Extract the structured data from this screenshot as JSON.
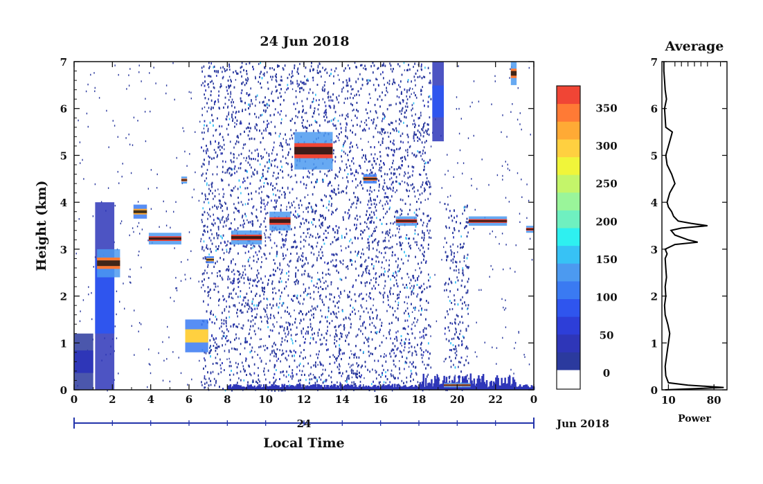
{
  "chart_data": [
    {
      "type": "heatmap",
      "title": "24 Jun 2018",
      "xlabel": "Local Time",
      "ylabel": "Height (km)",
      "xlim": [
        0,
        24
      ],
      "ylim": [
        0,
        7
      ],
      "x_ticks": [
        "0",
        "2",
        "4",
        "6",
        "8",
        "10",
        "12",
        "14",
        "16",
        "18",
        "20",
        "22",
        "0"
      ],
      "y_ticks": [
        "0",
        "1",
        "2",
        "3",
        "4",
        "5",
        "6",
        "7"
      ],
      "date_axis": {
        "day_label": "24",
        "month_label": "Jun 2018"
      },
      "colorbar": {
        "min": 0,
        "max": 375,
        "tick_labels": [
          "0",
          "50",
          "100",
          "150",
          "200",
          "250",
          "300",
          "350"
        ],
        "tick_values": [
          0,
          50,
          100,
          150,
          200,
          250,
          300,
          350
        ],
        "colors": [
          "#2b3a9e",
          "#2e36b8",
          "#2d3ed8",
          "#2f55ee",
          "#3a7af2",
          "#4c9af0",
          "#37c2f5",
          "#2ef0f0",
          "#6ff0c0",
          "#9af59a",
          "#c4f56a",
          "#f0f53a",
          "#ffd040",
          "#ffaa35",
          "#ff7a35",
          "#f04535"
        ]
      },
      "cloud_layers": [
        {
          "x0": 0.0,
          "x1": 1.0,
          "y0": 0.0,
          "y1": 1.2,
          "level": 40
        },
        {
          "x0": 1.1,
          "x1": 2.1,
          "y0": 0.0,
          "y1": 4.0,
          "level": 80
        },
        {
          "x0": 1.2,
          "x1": 2.4,
          "y0": 2.4,
          "y1": 3.0,
          "level": 350
        },
        {
          "x0": 3.1,
          "x1": 3.8,
          "y0": 3.65,
          "y1": 3.95,
          "level": 320
        },
        {
          "x0": 3.9,
          "x1": 5.6,
          "y0": 3.1,
          "y1": 3.35,
          "level": 360
        },
        {
          "x0": 5.6,
          "x1": 5.9,
          "y0": 4.4,
          "y1": 4.55,
          "level": 340
        },
        {
          "x0": 5.8,
          "x1": 7.0,
          "y0": 0.8,
          "y1": 1.5,
          "level": 300
        },
        {
          "x0": 6.9,
          "x1": 7.3,
          "y0": 2.7,
          "y1": 2.85,
          "level": 320
        },
        {
          "x0": 8.2,
          "x1": 9.8,
          "y0": 3.1,
          "y1": 3.4,
          "level": 360
        },
        {
          "x0": 10.2,
          "x1": 11.3,
          "y0": 3.4,
          "y1": 3.8,
          "level": 360
        },
        {
          "x0": 11.5,
          "x1": 13.5,
          "y0": 4.7,
          "y1": 5.5,
          "level": 370
        },
        {
          "x0": 15.1,
          "x1": 15.8,
          "y0": 4.4,
          "y1": 4.6,
          "level": 330
        },
        {
          "x0": 16.8,
          "x1": 17.9,
          "y0": 3.5,
          "y1": 3.7,
          "level": 360
        },
        {
          "x0": 18.7,
          "x1": 19.3,
          "y0": 5.3,
          "y1": 7.0,
          "level": 90
        },
        {
          "x0": 19.3,
          "x1": 20.7,
          "y0": 0.05,
          "y1": 0.15,
          "level": 340
        },
        {
          "x0": 20.6,
          "x1": 22.6,
          "y0": 3.5,
          "y1": 3.7,
          "level": 370
        },
        {
          "x0": 22.8,
          "x1": 23.1,
          "y0": 6.5,
          "y1": 7.0,
          "level": 350
        },
        {
          "x0": 23.6,
          "x1": 24.0,
          "y0": 3.35,
          "y1": 3.5,
          "level": 360
        }
      ]
    },
    {
      "type": "line",
      "title": "Average",
      "xlabel": "Power",
      "x_ticks": [
        "10",
        "80"
      ],
      "y_ticks": [
        "0",
        "1",
        "2",
        "3",
        "4",
        "5",
        "6",
        "7"
      ],
      "xlim": [
        0,
        100
      ],
      "ylim": [
        0,
        7
      ],
      "profile_height_km": [
        0.0,
        0.05,
        0.1,
        0.15,
        0.3,
        0.5,
        0.8,
        1.0,
        1.2,
        1.4,
        1.6,
        1.8,
        2.0,
        2.2,
        2.4,
        2.6,
        2.8,
        2.9,
        3.0,
        3.1,
        3.15,
        3.2,
        3.3,
        3.4,
        3.45,
        3.5,
        3.55,
        3.6,
        3.7,
        3.8,
        3.9,
        4.0,
        4.2,
        4.4,
        4.6,
        4.8,
        5.0,
        5.2,
        5.4,
        5.5,
        5.6,
        5.8,
        6.0,
        6.2,
        6.4,
        6.6,
        6.8,
        7.0
      ],
      "profile_power": [
        5,
        95,
        40,
        10,
        6,
        5,
        8,
        10,
        12,
        9,
        5,
        4,
        6,
        5,
        7,
        6,
        5,
        8,
        5,
        20,
        55,
        40,
        20,
        14,
        30,
        70,
        45,
        25,
        18,
        15,
        10,
        8,
        12,
        20,
        15,
        8,
        6,
        10,
        14,
        16,
        6,
        5,
        4,
        7,
        5,
        4,
        3,
        3
      ]
    }
  ]
}
